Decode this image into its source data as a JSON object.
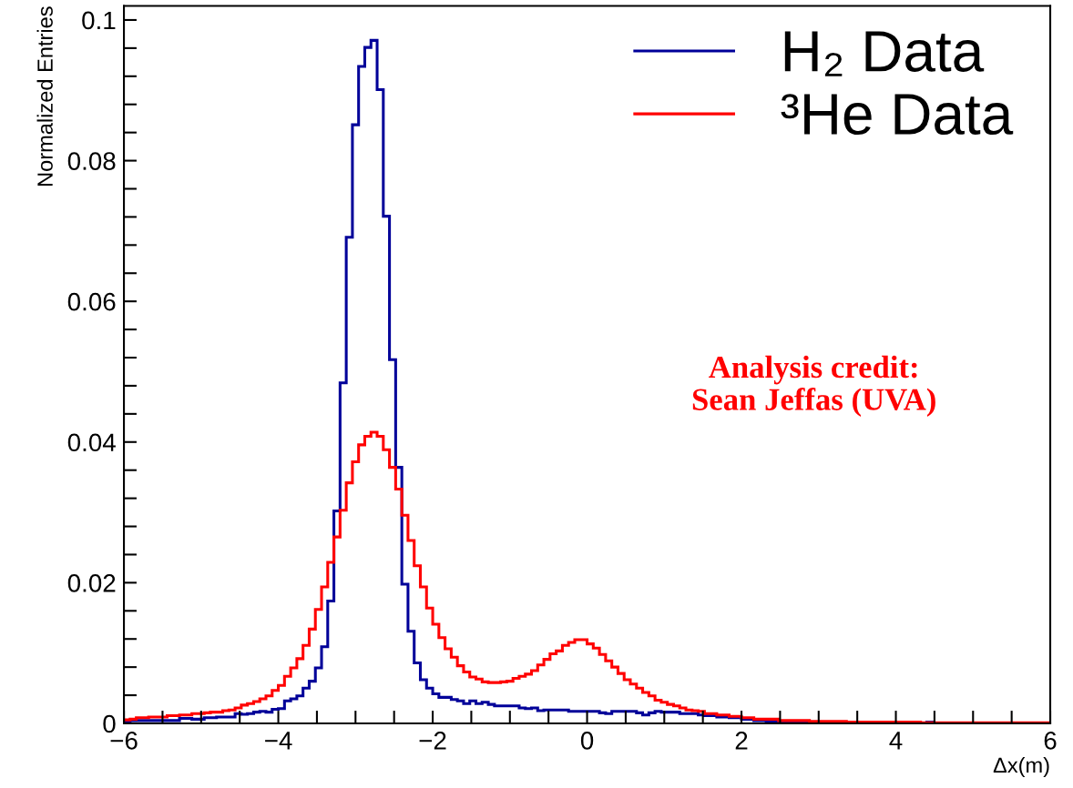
{
  "chart_data": {
    "type": "histogram",
    "xlabel": "Δx(m)",
    "ylabel": "Normalized Entries",
    "bins": [
      -6,
      -5.92,
      -5.84,
      -5.76,
      -5.68,
      -5.6,
      -5.52,
      -5.44,
      -5.36,
      -5.28,
      -5.2,
      -5.12,
      -5.04,
      -4.96,
      -4.88,
      -4.8,
      -4.72,
      -4.64,
      -4.56,
      -4.48,
      -4.4,
      -4.32,
      -4.24,
      -4.16,
      -4.08,
      -4,
      -3.92,
      -3.84,
      -3.76,
      -3.68,
      -3.6,
      -3.52,
      -3.44,
      -3.36,
      -3.28,
      -3.2,
      -3.12,
      -3.04,
      -2.96,
      -2.88,
      -2.8,
      -2.72,
      -2.64,
      -2.56,
      -2.48,
      -2.4,
      -2.32,
      -2.24,
      -2.16,
      -2.08,
      -2,
      -1.92,
      -1.84,
      -1.76,
      -1.68,
      -1.6,
      -1.52,
      -1.44,
      -1.36,
      -1.28,
      -1.2,
      -1.12,
      -1.04,
      -0.96,
      -0.88,
      -0.8,
      -0.72,
      -0.64,
      -0.56,
      -0.48,
      -0.4,
      -0.32,
      -0.24,
      -0.16,
      -0.08,
      0,
      0.08,
      0.16,
      0.24,
      0.32,
      0.4,
      0.48,
      0.56,
      0.64,
      0.72,
      0.8,
      0.88,
      0.96,
      1.04,
      1.12,
      1.2,
      1.28,
      1.36,
      1.44,
      1.52,
      1.6,
      1.68,
      1.76,
      1.84,
      1.92,
      2,
      2.08,
      2.16,
      2.24,
      2.32,
      2.4,
      2.48,
      2.56,
      2.64,
      2.72,
      2.8,
      2.88,
      2.96,
      3.04,
      3.12,
      3.2,
      3.28,
      3.36,
      3.44,
      3.52,
      3.6,
      3.68,
      3.76,
      3.84,
      3.92,
      4,
      4.08,
      4.16,
      4.24,
      4.32,
      4.4,
      4.48,
      4.56,
      4.64,
      4.72,
      4.8,
      4.88,
      4.96,
      5.04,
      5.12,
      5.2,
      5.28,
      5.36,
      5.44,
      5.52,
      5.6,
      5.68,
      5.76,
      5.84,
      5.92,
      6
    ],
    "series": [
      {
        "name": "H₂ Data",
        "color": "#000099",
        "values": [
          0.0003,
          0.0004,
          0.0004,
          0.0004,
          0.0004,
          0.0004,
          0.0004,
          0.0004,
          0.0004,
          0.0007,
          0.0007,
          0.0006,
          0.0006,
          0.0008,
          0.0008,
          0.0009,
          0.0009,
          0.0009,
          0.0014,
          0.0013,
          0.0014,
          0.0016,
          0.0017,
          0.0016,
          0.002,
          0.0021,
          0.0032,
          0.0035,
          0.0039,
          0.005,
          0.006,
          0.0079,
          0.0109,
          0.0174,
          0.0302,
          0.0484,
          0.0691,
          0.0851,
          0.0934,
          0.0961,
          0.0971,
          0.0901,
          0.0721,
          0.0517,
          0.0364,
          0.0198,
          0.0131,
          0.0086,
          0.0062,
          0.005,
          0.0042,
          0.0037,
          0.0037,
          0.0034,
          0.0032,
          0.0028,
          0.0032,
          0.0028,
          0.003,
          0.0027,
          0.0025,
          0.0025,
          0.0025,
          0.0025,
          0.0022,
          0.0021,
          0.0022,
          0.0018,
          0.0019,
          0.0019,
          0.0019,
          0.0019,
          0.0017,
          0.0017,
          0.0017,
          0.0017,
          0.0017,
          0.0015,
          0.0014,
          0.0017,
          0.0017,
          0.0017,
          0.0017,
          0.0015,
          0.0012,
          0.0015,
          0.0017,
          0.0016,
          0.0016,
          0.0016,
          0.0014,
          0.0014,
          0.0014,
          0.0012,
          0.0011,
          0.0011,
          0.0009,
          0.0009,
          0.0008,
          0.0008,
          0.0006,
          0.0006,
          0.0004,
          0.0004,
          0.0003,
          0.0003,
          0.0002,
          0.0002,
          0.0002,
          0.0002,
          0.0002,
          0.0001,
          0.0001,
          0.0001,
          0.0001,
          0.0001,
          0.0001,
          0.0001,
          0.0001,
          0.0001,
          0.0001,
          0.0001,
          0.0001,
          0.0001,
          0.0001,
          0.0001,
          0.0001,
          0.0001,
          0.0001,
          0,
          0.0002,
          0,
          0,
          0,
          0,
          0,
          0,
          0,
          0,
          0,
          0,
          0,
          0,
          0,
          0,
          0,
          0,
          0,
          0,
          0
        ]
      },
      {
        "name": "³He Data",
        "color": "#ff0000",
        "values": [
          0.0005,
          0.0006,
          0.0008,
          0.0008,
          0.0009,
          0.0009,
          0.0009,
          0.0011,
          0.0011,
          0.0012,
          0.0012,
          0.0014,
          0.0014,
          0.0015,
          0.0016,
          0.0016,
          0.0018,
          0.0019,
          0.0022,
          0.0026,
          0.0028,
          0.0031,
          0.0035,
          0.0039,
          0.0047,
          0.0054,
          0.0067,
          0.0079,
          0.0092,
          0.0111,
          0.0134,
          0.0162,
          0.0194,
          0.0229,
          0.0265,
          0.0303,
          0.0342,
          0.0372,
          0.0396,
          0.0408,
          0.0414,
          0.0408,
          0.0389,
          0.0364,
          0.0333,
          0.0296,
          0.026,
          0.0224,
          0.0194,
          0.0164,
          0.0141,
          0.0122,
          0.0106,
          0.0094,
          0.0082,
          0.0073,
          0.0066,
          0.0063,
          0.0059,
          0.0058,
          0.0058,
          0.0059,
          0.006,
          0.0064,
          0.0067,
          0.007,
          0.0075,
          0.0083,
          0.0091,
          0.0099,
          0.0103,
          0.0111,
          0.0115,
          0.0119,
          0.0119,
          0.0113,
          0.0107,
          0.0098,
          0.0089,
          0.008,
          0.0071,
          0.0062,
          0.0056,
          0.005,
          0.0044,
          0.0039,
          0.0033,
          0.003,
          0.0027,
          0.0025,
          0.0022,
          0.0019,
          0.0018,
          0.0017,
          0.0014,
          0.0014,
          0.0012,
          0.0012,
          0.001,
          0.001,
          0.0008,
          0.0008,
          0.0006,
          0.0006,
          0.0006,
          0.0006,
          0.0004,
          0.0004,
          0.0004,
          0.0004,
          0.0004,
          0.0003,
          0.0003,
          0.0003,
          0.0003,
          0.0003,
          0.0003,
          0.0002,
          0.0002,
          0.0002,
          0.0002,
          0.0002,
          0.0002,
          0.0002,
          0.0002,
          0.0002,
          0.0002,
          0.0002,
          0.0002,
          0.0001,
          0.0001,
          0.0001,
          0.0001,
          0.0001,
          0.0001,
          0.0001,
          0.0001,
          0.0001,
          0.0001,
          0.0001,
          0.0001,
          0.0001,
          0.0001,
          0.0001,
          0.0001,
          0.0001,
          0.0001,
          0.0001,
          0.0001,
          0.0001
        ]
      }
    ],
    "xlim": [
      -6,
      6
    ],
    "ylim": [
      0,
      0.102
    ],
    "xticks": [
      {
        "value": -6,
        "label": "−6"
      },
      {
        "value": -5.5,
        "label": null
      },
      {
        "value": -5,
        "label": null
      },
      {
        "value": -4.5,
        "label": null
      },
      {
        "value": -4,
        "label": "−4"
      },
      {
        "value": -3.5,
        "label": null
      },
      {
        "value": -3,
        "label": null
      },
      {
        "value": -2.5,
        "label": null
      },
      {
        "value": -2,
        "label": "−2"
      },
      {
        "value": -1.5,
        "label": null
      },
      {
        "value": -1,
        "label": null
      },
      {
        "value": -0.5,
        "label": null
      },
      0,
      {
        "value": 0.5,
        "label": null
      },
      {
        "value": 1,
        "label": null
      },
      {
        "value": 1.5,
        "label": null
      },
      2,
      {
        "value": 2.5,
        "label": null
      },
      {
        "value": 3,
        "label": null
      },
      {
        "value": 3.5,
        "label": null
      },
      4,
      {
        "value": 4.5,
        "label": null
      },
      {
        "value": 5,
        "label": null
      },
      {
        "value": 5.5,
        "label": null
      },
      6
    ],
    "yticks": [
      0,
      {
        "value": 0.004,
        "label": null
      },
      {
        "value": 0.008,
        "label": null
      },
      {
        "value": 0.012,
        "label": null
      },
      {
        "value": 0.016,
        "label": null
      },
      0.02,
      {
        "value": 0.024,
        "label": null
      },
      {
        "value": 0.028,
        "label": null
      },
      {
        "value": 0.032,
        "label": null
      },
      {
        "value": 0.036,
        "label": null
      },
      0.04,
      {
        "value": 0.044,
        "label": null
      },
      {
        "value": 0.048,
        "label": null
      },
      {
        "value": 0.052,
        "label": null
      },
      {
        "value": 0.056,
        "label": null
      },
      0.06,
      {
        "value": 0.064,
        "label": null
      },
      {
        "value": 0.068,
        "label": null
      },
      {
        "value": 0.072,
        "label": null
      },
      {
        "value": 0.076,
        "label": null
      },
      0.08,
      {
        "value": 0.084,
        "label": null
      },
      {
        "value": 0.088,
        "label": null
      },
      {
        "value": 0.092,
        "label": null
      },
      {
        "value": 0.096,
        "label": null
      },
      0.1
    ],
    "legend": "top right",
    "annotations": [
      "Analysis credit:\nSean Jeffas (UVA)"
    ]
  }
}
